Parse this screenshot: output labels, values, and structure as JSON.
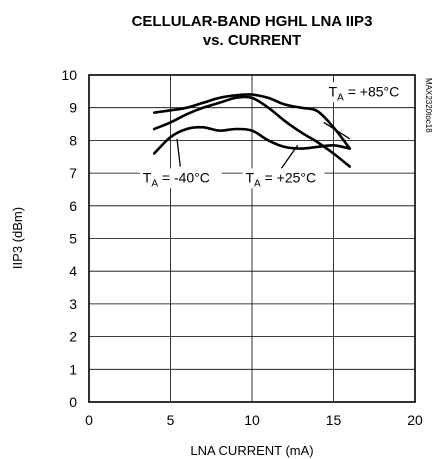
{
  "chart_data": {
    "type": "line",
    "title_line1": "CELLULAR-BAND HGHL LNA IIP3",
    "title_line2": "vs. CURRENT",
    "xlabel": "LNA CURRENT (mA)",
    "ylabel": "IIP3 (dBm)",
    "xlim": [
      0,
      20
    ],
    "ylim": [
      0,
      10
    ],
    "xticks": [
      "0",
      "5",
      "10",
      "15",
      "20"
    ],
    "yticks": [
      "0",
      "1",
      "2",
      "3",
      "4",
      "5",
      "6",
      "7",
      "8",
      "9",
      "10"
    ],
    "grid": true,
    "figure_code": "MAX2320toc18",
    "series": [
      {
        "name": "T_A = +85°C",
        "label_main": "T",
        "label_sub": "A",
        "label_rest": " = +85°C",
        "x": [
          4,
          5,
          6,
          7,
          8,
          9,
          10,
          11,
          12,
          13,
          14,
          15,
          16
        ],
        "y": [
          8.85,
          8.92,
          9.0,
          9.15,
          9.3,
          9.38,
          9.4,
          9.3,
          9.1,
          9.0,
          8.9,
          8.4,
          7.75
        ]
      },
      {
        "name": "T_A = +25°C",
        "label_main": "T",
        "label_sub": "A",
        "label_rest": " = +25°C",
        "x": [
          4,
          5,
          6,
          7,
          8,
          9,
          10,
          11,
          12,
          13,
          14,
          15,
          16
        ],
        "y": [
          8.35,
          8.55,
          8.8,
          9.0,
          9.15,
          9.3,
          9.3,
          9.0,
          8.6,
          8.25,
          7.95,
          7.6,
          7.2
        ]
      },
      {
        "name": "T_A = -40°C",
        "label_main": "T",
        "label_sub": "A",
        "label_rest": " = -40°C",
        "x": [
          4,
          5,
          6,
          7,
          8,
          9,
          10,
          11,
          12,
          13,
          14,
          15,
          16
        ],
        "y": [
          7.6,
          8.1,
          8.35,
          8.4,
          8.3,
          8.35,
          8.3,
          8.0,
          7.8,
          7.75,
          7.8,
          7.85,
          7.75
        ]
      }
    ]
  }
}
